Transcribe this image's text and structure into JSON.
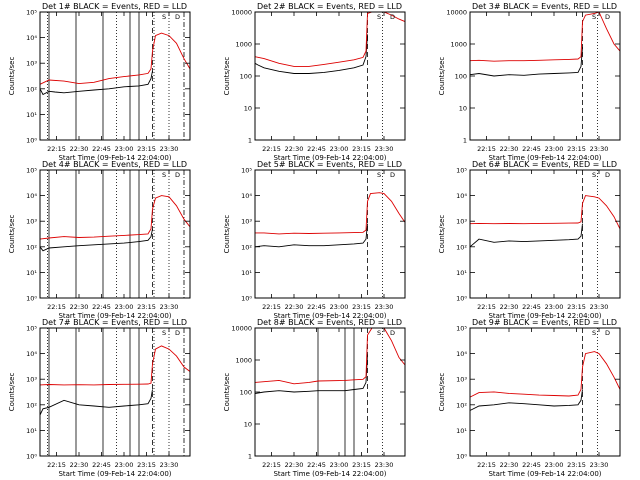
{
  "chart_data": [
    {
      "type": "line",
      "title": "Det 1# BLACK = Events, RED = LLD",
      "xlabel": "Start Time (09-Feb-14 22:04:00)",
      "ylabel": "Counts/sec",
      "yscale": "log",
      "ylim": [
        1,
        100000
      ],
      "yticks": [
        "10⁰",
        "10¹",
        "10²",
        "10³",
        "10⁴",
        "10⁵"
      ],
      "xlim": [
        "22:04",
        "23:44"
      ],
      "xticks": [
        "22:15",
        "22:30",
        "22:45",
        "23:00",
        "23:15",
        "23:30"
      ],
      "vlines_solid": [
        "22:10",
        "22:28",
        "22:46",
        "23:04",
        "23:10"
      ],
      "vlines_dashed": [
        "23:19"
      ],
      "vlines_dotted": [
        "22:09",
        "22:55",
        "23:20",
        "23:30"
      ],
      "vlines_dashdot": [
        "23:40"
      ],
      "markers": [
        "S",
        "D"
      ],
      "series": [
        {
          "color": "#000000",
          "x": [
            "22:04",
            "22:06",
            "22:10",
            "22:14",
            "22:20",
            "22:30",
            "22:40",
            "22:50",
            "23:00",
            "23:10",
            "23:16",
            "23:18",
            "23:19"
          ],
          "y": [
            100,
            60,
            80,
            75,
            70,
            80,
            90,
            100,
            120,
            130,
            150,
            250,
            500
          ]
        },
        {
          "color": "#dd0000",
          "x": [
            "22:04",
            "22:10",
            "22:20",
            "22:30",
            "22:40",
            "22:50",
            "23:00",
            "23:10",
            "23:16",
            "23:18",
            "23:19",
            "23:21",
            "23:25",
            "23:30",
            "23:35",
            "23:40",
            "23:44"
          ],
          "y": [
            150,
            220,
            200,
            160,
            180,
            250,
            300,
            350,
            400,
            600,
            3000,
            12000,
            15000,
            12000,
            6000,
            1500,
            600
          ]
        }
      ]
    },
    {
      "type": "line",
      "title": "Det 2# BLACK = Events, RED = LLD",
      "xlabel": "Start Time (09-Feb-14 22:04:00)",
      "ylabel": "Counts/sec",
      "yscale": "log",
      "ylim": [
        1,
        10000
      ],
      "yticks": [
        "1",
        "10",
        "100",
        "1000",
        "10000"
      ],
      "xlim": [
        "22:04",
        "23:44"
      ],
      "xticks": [
        "22:15",
        "22:30",
        "22:45",
        "23:00",
        "23:15",
        "23:30"
      ],
      "vlines_solid": [],
      "vlines_dashed": [
        "23:19"
      ],
      "vlines_dotted": [
        "23:29"
      ],
      "vlines_dashdot": [],
      "markers": [
        "S",
        "D"
      ],
      "series": [
        {
          "color": "#000000",
          "x": [
            "22:04",
            "22:06",
            "22:10",
            "22:20",
            "22:30",
            "22:40",
            "22:50",
            "23:00",
            "23:10",
            "23:16",
            "23:18",
            "23:19"
          ],
          "y": [
            250,
            220,
            180,
            140,
            120,
            120,
            130,
            150,
            180,
            220,
            400,
            2000
          ]
        },
        {
          "color": "#dd0000",
          "x": [
            "22:04",
            "22:10",
            "22:20",
            "22:30",
            "22:40",
            "22:50",
            "23:00",
            "23:10",
            "23:16",
            "23:18",
            "23:19",
            "23:22",
            "23:27",
            "23:30",
            "23:35",
            "23:40",
            "23:44"
          ],
          "y": [
            400,
            350,
            250,
            200,
            200,
            230,
            270,
            320,
            380,
            600,
            9000,
            10000,
            10000,
            10000,
            8000,
            6000,
            5000
          ]
        }
      ]
    },
    {
      "type": "line",
      "title": "Det 3# BLACK = Events, RED = LLD",
      "xlabel": "Start Time (09-Feb-14 22:04:00)",
      "ylabel": "Counts/sec",
      "yscale": "log",
      "ylim": [
        1,
        10000
      ],
      "yticks": [
        "1",
        "10",
        "100",
        "1000",
        "10000"
      ],
      "xlim": [
        "22:04",
        "23:44"
      ],
      "xticks": [
        "22:15",
        "22:30",
        "22:45",
        "23:00",
        "23:15",
        "23:30"
      ],
      "vlines_solid": [],
      "vlines_dashed": [
        "23:19"
      ],
      "vlines_dotted": [
        "23:29"
      ],
      "vlines_dashdot": [],
      "markers": [
        "S",
        "D"
      ],
      "series": [
        {
          "color": "#000000",
          "x": [
            "22:04",
            "22:10",
            "22:20",
            "22:30",
            "22:40",
            "22:50",
            "23:00",
            "23:10",
            "23:16",
            "23:18",
            "23:19"
          ],
          "y": [
            110,
            120,
            100,
            110,
            105,
            115,
            120,
            125,
            130,
            200,
            800
          ]
        },
        {
          "color": "#dd0000",
          "x": [
            "22:04",
            "22:10",
            "22:20",
            "22:30",
            "22:40",
            "22:50",
            "23:00",
            "23:10",
            "23:16",
            "23:18",
            "23:19",
            "23:21",
            "23:27",
            "23:30",
            "23:35",
            "23:40",
            "23:44"
          ],
          "y": [
            300,
            310,
            290,
            300,
            300,
            310,
            320,
            330,
            340,
            400,
            5000,
            8000,
            9000,
            10000,
            3000,
            1000,
            600
          ]
        }
      ]
    },
    {
      "type": "line",
      "title": "Det 4# BLACK = Events, RED = LLD",
      "xlabel": "Start Time (09-Feb-14 22:04:00)",
      "ylabel": "Counts/sec",
      "yscale": "log",
      "ylim": [
        1,
        100000
      ],
      "yticks": [
        "10⁰",
        "10¹",
        "10²",
        "10³",
        "10⁴",
        "10⁵"
      ],
      "xlim": [
        "22:04",
        "23:44"
      ],
      "xticks": [
        "22:15",
        "22:30",
        "22:45",
        "23:00",
        "23:15",
        "23:30"
      ],
      "vlines_solid": [
        "22:10",
        "22:28",
        "22:46",
        "23:04",
        "23:10"
      ],
      "vlines_dashed": [
        "23:19"
      ],
      "vlines_dotted": [
        "22:09",
        "22:55",
        "23:20",
        "23:30"
      ],
      "vlines_dashdot": [
        "23:40"
      ],
      "markers": [
        "S",
        "D"
      ],
      "series": [
        {
          "color": "#000000",
          "x": [
            "22:04",
            "22:06",
            "22:10",
            "22:20",
            "22:30",
            "22:40",
            "22:50",
            "23:00",
            "23:10",
            "23:16",
            "23:18",
            "23:19"
          ],
          "y": [
            100,
            70,
            90,
            100,
            110,
            120,
            130,
            140,
            160,
            180,
            250,
            500
          ]
        },
        {
          "color": "#dd0000",
          "x": [
            "22:04",
            "22:10",
            "22:20",
            "22:30",
            "22:40",
            "22:50",
            "23:00",
            "23:10",
            "23:16",
            "23:18",
            "23:19",
            "23:21",
            "23:25",
            "23:30",
            "23:35",
            "23:40",
            "23:44"
          ],
          "y": [
            200,
            220,
            250,
            230,
            240,
            260,
            280,
            300,
            320,
            500,
            3000,
            8000,
            10000,
            9000,
            4000,
            1200,
            600
          ]
        }
      ]
    },
    {
      "type": "line",
      "title": "Det 5# BLACK = Events, RED = LLD",
      "xlabel": "Start Time (09-Feb-14 22:04:00)",
      "ylabel": "Counts/sec",
      "yscale": "log",
      "ylim": [
        1,
        100000
      ],
      "yticks": [
        "10⁰",
        "10¹",
        "10²",
        "10³",
        "10⁴",
        "10⁵"
      ],
      "xlim": [
        "22:04",
        "23:44"
      ],
      "xticks": [
        "22:15",
        "22:30",
        "22:45",
        "23:00",
        "23:15",
        "23:30"
      ],
      "vlines_solid": [],
      "vlines_dashed": [
        "23:19"
      ],
      "vlines_dotted": [
        "23:29"
      ],
      "vlines_dashdot": [],
      "markers": [
        "S",
        "D"
      ],
      "series": [
        {
          "color": "#000000",
          "x": [
            "22:04",
            "22:10",
            "22:20",
            "22:30",
            "22:40",
            "22:50",
            "23:00",
            "23:10",
            "23:16",
            "23:18",
            "23:19"
          ],
          "y": [
            100,
            110,
            100,
            120,
            110,
            110,
            120,
            130,
            140,
            200,
            800
          ]
        },
        {
          "color": "#dd0000",
          "x": [
            "22:04",
            "22:10",
            "22:20",
            "22:30",
            "22:40",
            "22:50",
            "23:00",
            "23:10",
            "23:16",
            "23:18",
            "23:19",
            "23:21",
            "23:27",
            "23:30",
            "23:35",
            "23:40",
            "23:44"
          ],
          "y": [
            350,
            350,
            320,
            340,
            330,
            340,
            350,
            360,
            370,
            450,
            6000,
            12000,
            13000,
            12000,
            6000,
            2000,
            900
          ]
        }
      ]
    },
    {
      "type": "line",
      "title": "Det 6# BLACK = Events, RED = LLD",
      "xlabel": "Start Time (09-Feb-14 22:04:00)",
      "ylabel": "Counts/sec",
      "yscale": "log",
      "ylim": [
        1,
        100000
      ],
      "yticks": [
        "10⁰",
        "10¹",
        "10²",
        "10³",
        "10⁴",
        "10⁵"
      ],
      "xlim": [
        "22:04",
        "23:44"
      ],
      "xticks": [
        "22:15",
        "22:30",
        "22:45",
        "23:00",
        "23:15",
        "23:30"
      ],
      "vlines_solid": [],
      "vlines_dashed": [
        "23:19"
      ],
      "vlines_dotted": [
        "23:29"
      ],
      "vlines_dashdot": [],
      "markers": [
        "S",
        "D"
      ],
      "series": [
        {
          "color": "#000000",
          "x": [
            "22:04",
            "22:10",
            "22:20",
            "22:30",
            "22:40",
            "22:50",
            "23:00",
            "23:10",
            "23:16",
            "23:18",
            "23:19"
          ],
          "y": [
            100,
            200,
            150,
            170,
            160,
            170,
            180,
            190,
            200,
            260,
            800
          ]
        },
        {
          "color": "#dd0000",
          "x": [
            "22:04",
            "22:10",
            "22:20",
            "22:30",
            "22:40",
            "22:50",
            "23:00",
            "23:10",
            "23:16",
            "23:18",
            "23:19",
            "23:21",
            "23:27",
            "23:30",
            "23:35",
            "23:40",
            "23:44"
          ],
          "y": [
            800,
            820,
            800,
            810,
            800,
            820,
            830,
            840,
            850,
            950,
            5000,
            10000,
            9000,
            8000,
            4000,
            1500,
            500
          ]
        }
      ]
    },
    {
      "type": "line",
      "title": "Det 7# BLACK = Events, RED = LLD",
      "xlabel": "Start Time (09-Feb-14 22:04:00)",
      "ylabel": "Counts/sec",
      "yscale": "log",
      "ylim": [
        1,
        100000
      ],
      "yticks": [
        "10⁰",
        "10¹",
        "10²",
        "10³",
        "10⁴",
        "10⁵"
      ],
      "xlim": [
        "22:04",
        "23:44"
      ],
      "xticks": [
        "22:15",
        "22:30",
        "22:45",
        "23:00",
        "23:15",
        "23:30"
      ],
      "vlines_solid": [
        "22:10",
        "22:28",
        "22:46",
        "23:04",
        "23:10"
      ],
      "vlines_dashed": [
        "23:19"
      ],
      "vlines_dotted": [
        "22:09",
        "22:55",
        "23:20",
        "23:30"
      ],
      "vlines_dashdot": [
        "23:40"
      ],
      "markers": [
        "S",
        "D"
      ],
      "series": [
        {
          "color": "#000000",
          "x": [
            "22:04",
            "22:06",
            "22:10",
            "22:20",
            "22:30",
            "22:40",
            "22:50",
            "23:00",
            "23:10",
            "23:16",
            "23:18",
            "23:19"
          ],
          "y": [
            40,
            70,
            80,
            150,
            100,
            90,
            80,
            90,
            100,
            110,
            180,
            400
          ]
        },
        {
          "color": "#dd0000",
          "x": [
            "22:04",
            "22:10",
            "22:20",
            "22:30",
            "22:40",
            "22:50",
            "23:00",
            "23:10",
            "23:16",
            "23:18",
            "23:19",
            "23:21",
            "23:25",
            "23:30",
            "23:35",
            "23:40",
            "23:44"
          ],
          "y": [
            600,
            620,
            600,
            610,
            600,
            620,
            630,
            640,
            650,
            700,
            4000,
            15000,
            20000,
            15000,
            8000,
            3000,
            2000
          ]
        }
      ]
    },
    {
      "type": "line",
      "title": "Det 8# BLACK = Events, RED = LLD",
      "xlabel": "Start Time (09-Feb-14 22:04:00)",
      "ylabel": "Counts/sec",
      "yscale": "log",
      "ylim": [
        1,
        10000
      ],
      "yticks": [
        "1",
        "10",
        "100",
        "1000",
        "10000"
      ],
      "xlim": [
        "22:04",
        "23:44"
      ],
      "xticks": [
        "22:15",
        "22:30",
        "22:45",
        "23:00",
        "23:15",
        "23:30"
      ],
      "vlines_solid": [
        "22:46",
        "23:04",
        "23:10"
      ],
      "vlines_dashed": [
        "23:19"
      ],
      "vlines_dotted": [
        "23:29"
      ],
      "vlines_dashdot": [],
      "markers": [
        "S",
        "D"
      ],
      "series": [
        {
          "color": "#000000",
          "x": [
            "22:04",
            "22:10",
            "22:20",
            "22:30",
            "22:40",
            "22:46",
            "23:04",
            "23:10",
            "23:16",
            "23:18",
            "23:19"
          ],
          "y": [
            90,
            100,
            110,
            100,
            105,
            110,
            110,
            120,
            130,
            200,
            1500
          ]
        },
        {
          "color": "#dd0000",
          "x": [
            "22:04",
            "22:10",
            "22:20",
            "22:30",
            "22:40",
            "22:46",
            "23:04",
            "23:10",
            "23:16",
            "23:18",
            "23:19",
            "23:22",
            "23:27",
            "23:30",
            "23:35",
            "23:40",
            "23:44"
          ],
          "y": [
            200,
            210,
            230,
            180,
            200,
            220,
            230,
            240,
            250,
            300,
            6000,
            10000,
            10000,
            10000,
            4000,
            1200,
            700
          ]
        }
      ]
    },
    {
      "type": "line",
      "title": "Det 9# BLACK = Events, RED = LLD",
      "xlabel": "Start Time (09-Feb-14 22:04:00)",
      "ylabel": "Counts/sec",
      "yscale": "log",
      "ylim": [
        1,
        100000
      ],
      "yticks": [
        "10⁰",
        "10¹",
        "10²",
        "10³",
        "10⁴",
        "10⁵"
      ],
      "xlim": [
        "22:04",
        "23:44"
      ],
      "xticks": [
        "22:15",
        "22:30",
        "22:45",
        "23:00",
        "23:15",
        "23:30"
      ],
      "vlines_solid": [],
      "vlines_dashed": [
        "23:19"
      ],
      "vlines_dotted": [
        "23:29"
      ],
      "vlines_dashdot": [],
      "markers": [
        "S",
        "D"
      ],
      "series": [
        {
          "color": "#000000",
          "x": [
            "22:04",
            "22:10",
            "22:20",
            "22:30",
            "22:40",
            "22:50",
            "23:00",
            "23:10",
            "23:16",
            "23:18",
            "23:19"
          ],
          "y": [
            60,
            90,
            100,
            120,
            110,
            100,
            90,
            95,
            100,
            150,
            400
          ]
        },
        {
          "color": "#dd0000",
          "x": [
            "22:04",
            "22:10",
            "22:20",
            "22:30",
            "22:40",
            "22:50",
            "23:00",
            "23:10",
            "23:16",
            "23:18",
            "23:19",
            "23:21",
            "23:27",
            "23:30",
            "23:35",
            "23:40",
            "23:44"
          ],
          "y": [
            200,
            300,
            320,
            280,
            260,
            240,
            230,
            220,
            240,
            400,
            3000,
            10000,
            12000,
            10000,
            4000,
            1200,
            400
          ]
        }
      ]
    }
  ]
}
